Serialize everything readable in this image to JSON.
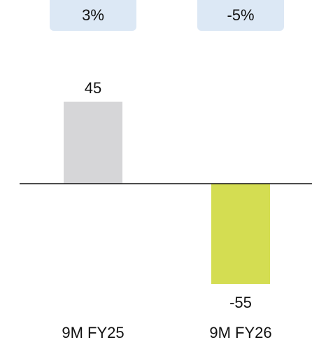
{
  "chart_data": {
    "type": "bar",
    "categories": [
      "9M FY25",
      "9M FY26"
    ],
    "values": [
      45,
      -55
    ],
    "data_labels": [
      "45",
      "-55"
    ],
    "change_badges": [
      "3%",
      "-5%"
    ],
    "colors": [
      "#d6d6d8",
      "#d4dd52"
    ],
    "badge_color": "#dce8f5",
    "title": "",
    "xlabel": "",
    "ylabel": "",
    "ylim": [
      -55,
      45
    ],
    "grid": false,
    "legend": "none"
  }
}
